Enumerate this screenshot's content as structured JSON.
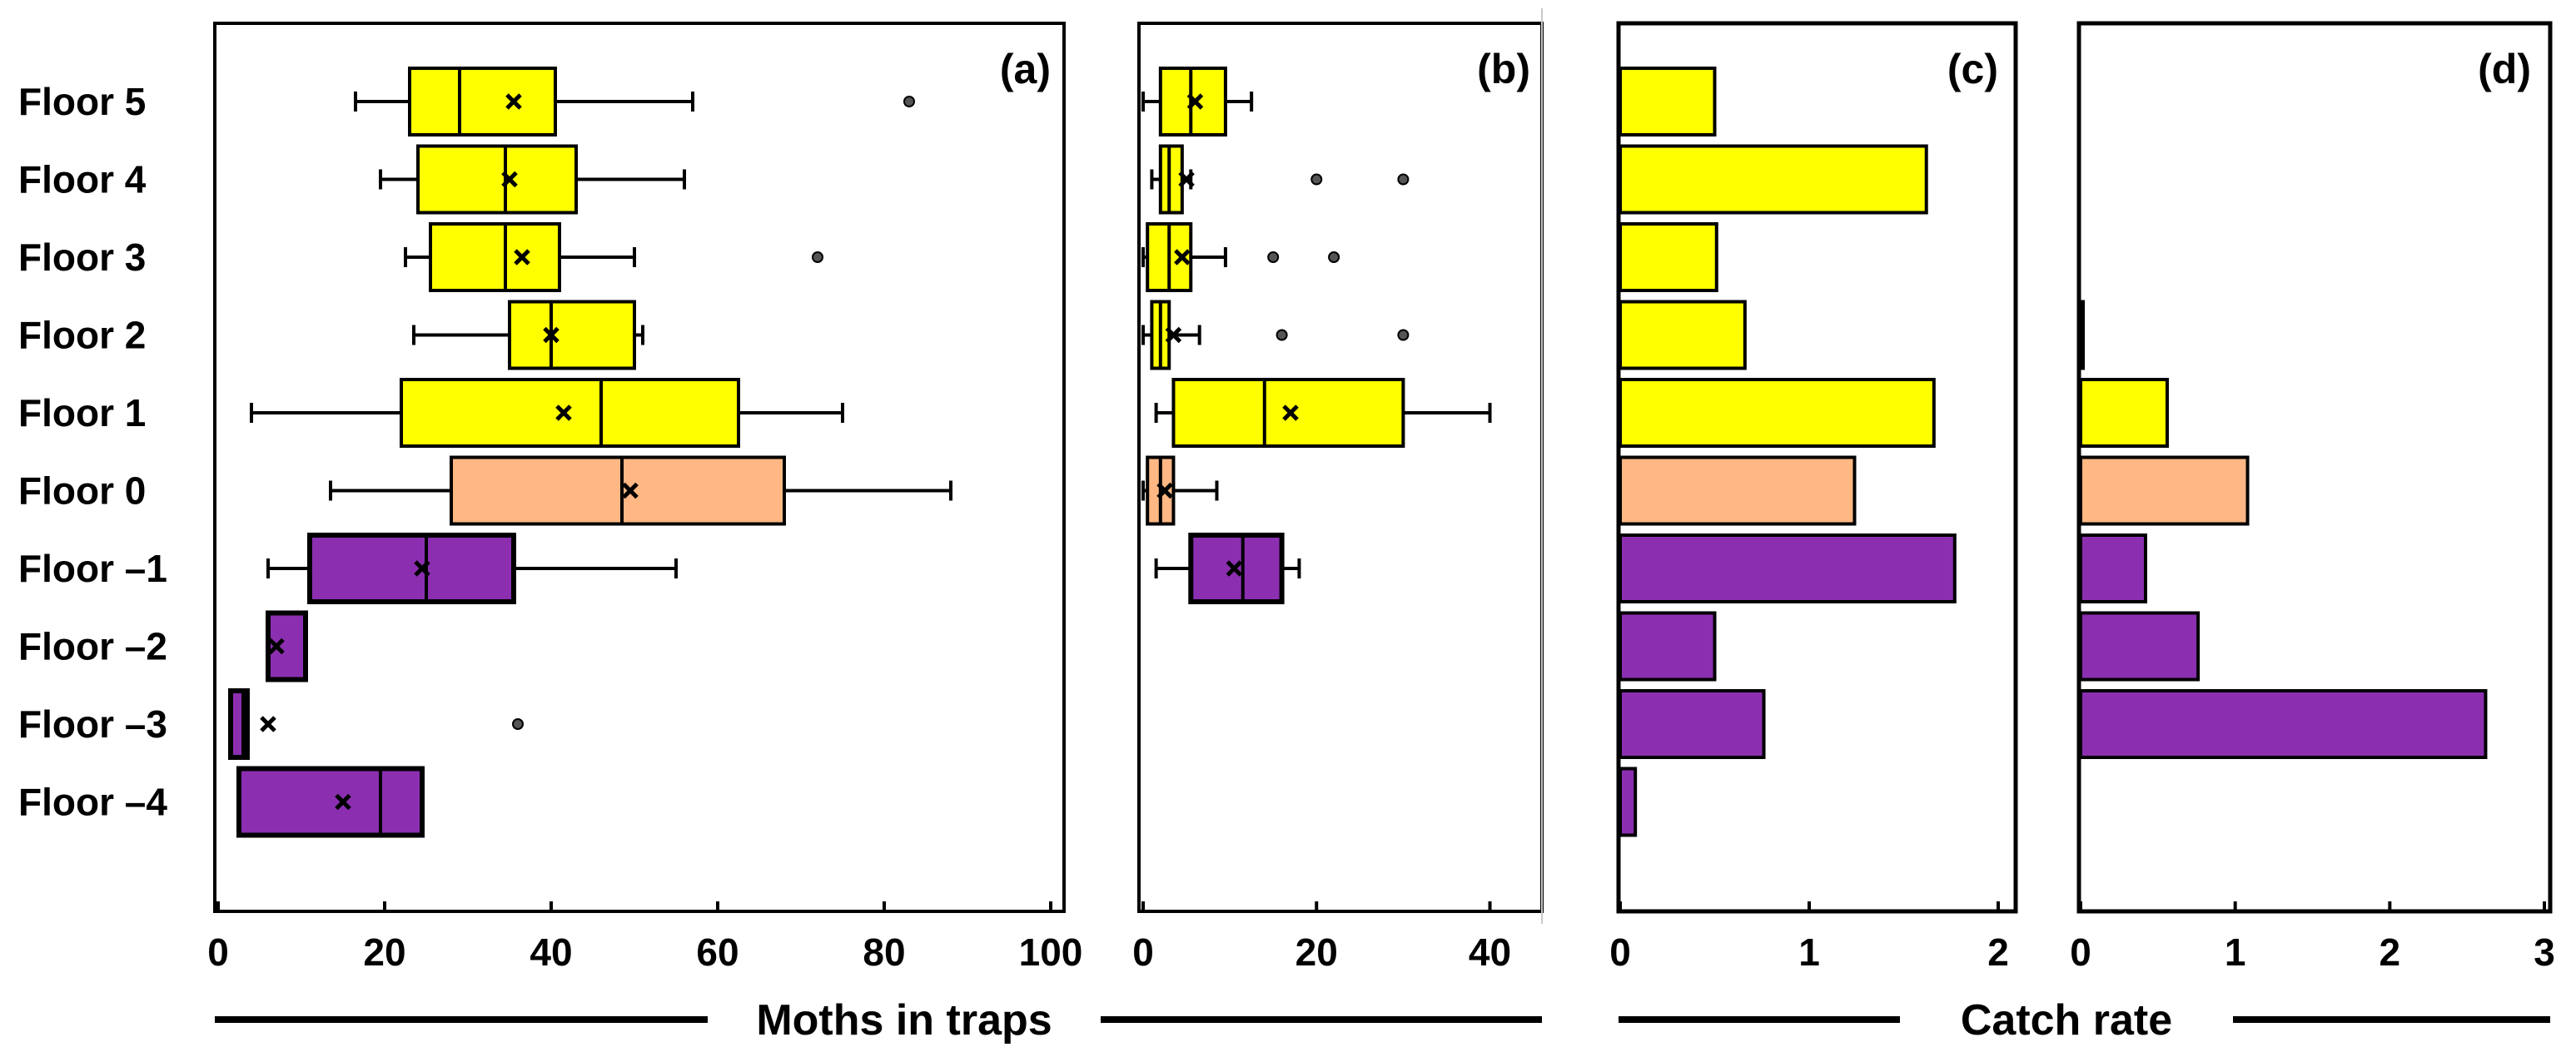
{
  "figure": {
    "y_categories": [
      "Floor  5",
      "Floor  4",
      "Floor  3",
      "Floor  2",
      "Floor  1",
      "Floor  0",
      "Floor –1",
      "Floor –2",
      "Floor –3",
      "Floor –4"
    ],
    "xlabel_moths": "Moths in traps",
    "xlabel_catch": "Catch rate",
    "colors": {
      "above": "#FFFF00",
      "ground": "#FFB784",
      "below": "#8B2FB0",
      "edge": "#000000"
    }
  },
  "chart_data": [
    {
      "type": "box",
      "panel_label": "(a)",
      "xlim": [
        0,
        100
      ],
      "xticks": [
        "0",
        "20",
        "40",
        "60",
        "80",
        "100"
      ],
      "boxes": [
        {
          "category": "Floor 5",
          "q1": 23,
          "median": 29,
          "q3": 40.5,
          "whisker_low": 16.5,
          "whisker_high": 57,
          "mean": 35.5,
          "outliers": [
            83
          ],
          "group": "above"
        },
        {
          "category": "Floor 4",
          "q1": 24,
          "median": 34.5,
          "q3": 43,
          "whisker_low": 19.5,
          "whisker_high": 56,
          "mean": 35,
          "outliers": [],
          "group": "above"
        },
        {
          "category": "Floor 3",
          "q1": 25.5,
          "median": 34.5,
          "q3": 41,
          "whisker_low": 22.5,
          "whisker_high": 50,
          "mean": 36.5,
          "outliers": [
            72
          ],
          "group": "above"
        },
        {
          "category": "Floor 2",
          "q1": 35,
          "median": 40,
          "q3": 50,
          "whisker_low": 23.5,
          "whisker_high": 51,
          "mean": 40,
          "outliers": [],
          "group": "above"
        },
        {
          "category": "Floor 1",
          "q1": 22,
          "median": 46,
          "q3": 62.5,
          "whisker_low": 4,
          "whisker_high": 75,
          "mean": 41.5,
          "outliers": [],
          "group": "above"
        },
        {
          "category": "Floor 0",
          "q1": 28,
          "median": 48.5,
          "q3": 68,
          "whisker_low": 13.5,
          "whisker_high": 88,
          "mean": 49.5,
          "outliers": [],
          "group": "ground"
        },
        {
          "category": "Floor -1",
          "q1": 11,
          "median": 25,
          "q3": 35.5,
          "whisker_low": 6,
          "whisker_high": 55,
          "mean": 24.5,
          "outliers": [],
          "group": "below"
        },
        {
          "category": "Floor -2",
          "q1": 6,
          "median": 6,
          "q3": 10.5,
          "whisker_low": 6,
          "whisker_high": 10.5,
          "mean": 7,
          "outliers": [],
          "group": "below"
        },
        {
          "category": "Floor -3",
          "q1": 1.5,
          "median": 3,
          "q3": 3.5,
          "whisker_low": 1.5,
          "whisker_high": 3.5,
          "mean": 6,
          "outliers": [
            36
          ],
          "group": "below"
        },
        {
          "category": "Floor -4",
          "q1": 2.5,
          "median": 19.5,
          "q3": 24.5,
          "whisker_low": 2.5,
          "whisker_high": 24.5,
          "mean": 15,
          "outliers": [],
          "group": "below"
        }
      ]
    },
    {
      "type": "box",
      "panel_label": "(b)",
      "xlim": [
        0,
        46
      ],
      "xticks": [
        "0",
        "20",
        "40"
      ],
      "boxes": [
        {
          "category": "Floor 5",
          "q1": 2,
          "median": 5.5,
          "q3": 9.5,
          "whisker_low": 0,
          "whisker_high": 12.5,
          "mean": 6,
          "outliers": [],
          "group": "above"
        },
        {
          "category": "Floor 4",
          "q1": 2,
          "median": 3,
          "q3": 4.5,
          "whisker_low": 1,
          "whisker_high": 5.5,
          "mean": 5,
          "outliers": [
            20,
            30
          ],
          "group": "above"
        },
        {
          "category": "Floor 3",
          "q1": 0.5,
          "median": 3,
          "q3": 5.5,
          "whisker_low": 0,
          "whisker_high": 9.5,
          "mean": 4.5,
          "outliers": [
            15,
            22
          ],
          "group": "above"
        },
        {
          "category": "Floor 2",
          "q1": 1,
          "median": 2,
          "q3": 3,
          "whisker_low": 0,
          "whisker_high": 6.5,
          "mean": 3.5,
          "outliers": [
            16,
            30
          ],
          "group": "above"
        },
        {
          "category": "Floor 1",
          "q1": 3.5,
          "median": 14,
          "q3": 30,
          "whisker_low": 1.5,
          "whisker_high": 40,
          "mean": 17,
          "outliers": [],
          "group": "above"
        },
        {
          "category": "Floor 0",
          "q1": 0.5,
          "median": 2,
          "q3": 3.5,
          "whisker_low": 0,
          "whisker_high": 8.5,
          "mean": 2.5,
          "outliers": [],
          "group": "ground"
        },
        {
          "category": "Floor -1",
          "q1": 5.5,
          "median": 11.5,
          "q3": 16,
          "whisker_low": 1.5,
          "whisker_high": 18,
          "mean": 10.5,
          "outliers": [],
          "group": "below"
        }
      ]
    },
    {
      "type": "bar",
      "orientation": "horizontal",
      "panel_label": "(c)",
      "xlim": [
        0,
        2
      ],
      "xticks": [
        "0",
        "1",
        "2"
      ],
      "categories": [
        "Floor 5",
        "Floor 4",
        "Floor 3",
        "Floor 2",
        "Floor 1",
        "Floor 0",
        "Floor -1",
        "Floor -2",
        "Floor -3",
        "Floor -4"
      ],
      "values": [
        0.5,
        1.62,
        0.51,
        0.66,
        1.66,
        1.24,
        1.77,
        0.5,
        0.76,
        0.08
      ],
      "groups": [
        "above",
        "above",
        "above",
        "above",
        "above",
        "ground",
        "below",
        "below",
        "below",
        "below"
      ]
    },
    {
      "type": "bar",
      "orientation": "horizontal",
      "panel_label": "(d)",
      "xlim": [
        0,
        3
      ],
      "xticks": [
        "0",
        "1",
        "2",
        "3"
      ],
      "categories": [
        "Floor 5",
        "Floor 4",
        "Floor 3",
        "Floor 2",
        "Floor 1",
        "Floor 0",
        "Floor -1",
        "Floor -2",
        "Floor -3",
        "Floor -4"
      ],
      "values": [
        0,
        0,
        0,
        0.01,
        0.56,
        1.08,
        0.42,
        0.76,
        2.62,
        0
      ],
      "groups": [
        "above",
        "above",
        "above",
        "above",
        "above",
        "ground",
        "below",
        "below",
        "below",
        "below"
      ]
    }
  ]
}
